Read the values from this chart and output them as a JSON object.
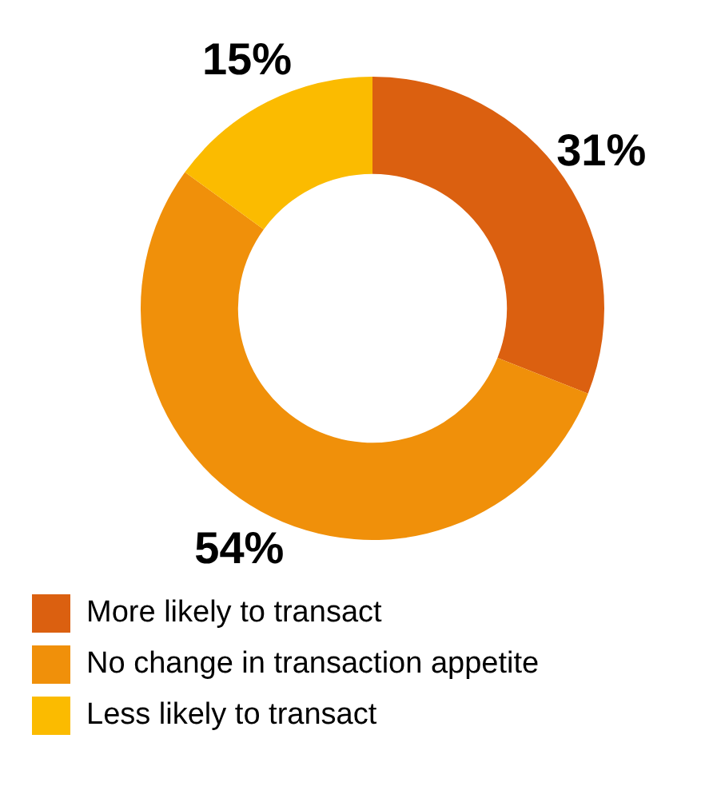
{
  "chart_data": {
    "type": "donut",
    "categories": [
      "More likely to transact",
      "No change in transaction appetite",
      "Less likely to transact"
    ],
    "values": [
      31,
      54,
      15
    ],
    "value_labels": [
      "31%",
      "54%",
      "15%"
    ],
    "colors": [
      "#db6010",
      "#f0900a",
      "#fbbb00"
    ],
    "legend": "bottom"
  }
}
